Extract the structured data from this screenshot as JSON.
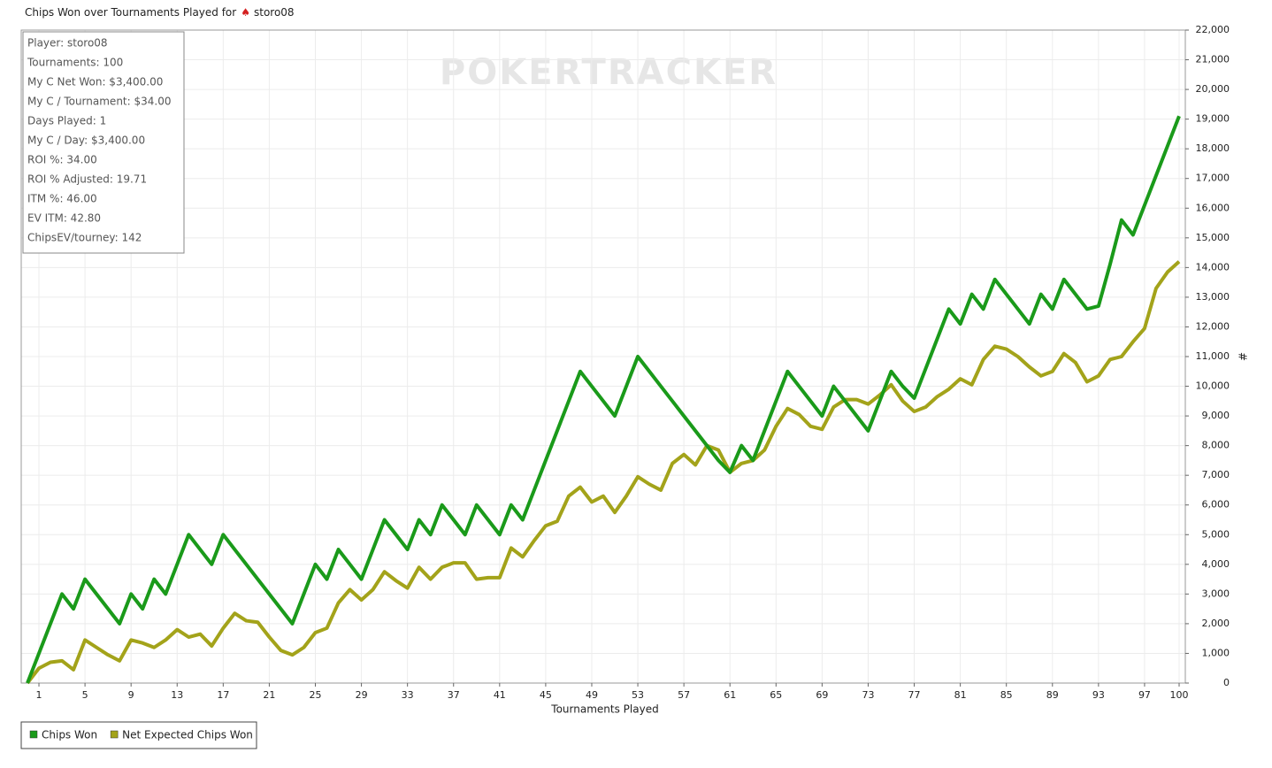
{
  "chart_data": {
    "type": "line",
    "title": "Chips Won over Tournaments Played for",
    "player": "storo08",
    "watermark": "POKERTRACKER",
    "xlabel": "Tournaments Played",
    "ylabel": "#",
    "stats": [
      "Player: storo08",
      "Tournaments: 100",
      "My C Net Won: $3,400.00",
      "My C / Tournament: $34.00",
      "Days Played: 1",
      "My C / Day: $3,400.00",
      "ROI %: 34.00",
      "ROI % Adjusted: 19.71",
      "ITM %: 46.00",
      "EV ITM: 42.80",
      "ChipsEV/tourney: 142"
    ],
    "x": [
      0,
      1,
      2,
      3,
      4,
      5,
      6,
      7,
      8,
      9,
      10,
      11,
      12,
      13,
      14,
      15,
      16,
      17,
      18,
      19,
      20,
      21,
      22,
      23,
      24,
      25,
      26,
      27,
      28,
      29,
      30,
      31,
      32,
      33,
      34,
      35,
      36,
      37,
      38,
      39,
      40,
      41,
      42,
      43,
      44,
      45,
      46,
      47,
      48,
      49,
      50,
      51,
      52,
      53,
      54,
      55,
      56,
      57,
      58,
      59,
      60,
      61,
      62,
      63,
      64,
      65,
      66,
      67,
      68,
      69,
      70,
      71,
      72,
      73,
      74,
      75,
      76,
      77,
      78,
      79,
      80,
      81,
      82,
      83,
      84,
      85,
      86,
      87,
      88,
      89,
      90,
      91,
      92,
      93,
      94,
      95,
      96,
      97,
      98,
      99,
      100
    ],
    "series": [
      {
        "name": "Chips Won",
        "color": "#1a9a1a",
        "values": [
          0,
          1000,
          2000,
          3000,
          2500,
          3500,
          3000,
          2500,
          2000,
          3000,
          2500,
          3500,
          3000,
          4000,
          5000,
          4500,
          4000,
          5000,
          4500,
          4000,
          3500,
          3000,
          2500,
          2000,
          3000,
          4000,
          3500,
          4500,
          4000,
          3500,
          4500,
          5500,
          5000,
          4500,
          5500,
          5000,
          6000,
          5500,
          5000,
          6000,
          5500,
          5000,
          6000,
          5500,
          6500,
          7500,
          8500,
          9500,
          10500,
          10000,
          9500,
          9000,
          10000,
          11000,
          10500,
          10000,
          9500,
          9000,
          8500,
          8000,
          7500,
          7100,
          8000,
          7500,
          8500,
          9500,
          10500,
          10000,
          9500,
          9000,
          10000,
          9500,
          9000,
          8500,
          9500,
          10500,
          10000,
          9600,
          10600,
          11600,
          12600,
          12100,
          13100,
          12600,
          13600,
          13100,
          12600,
          12100,
          13100,
          12600,
          13600,
          13100,
          12600,
          12700,
          14100,
          15600,
          15100,
          16100,
          17100,
          18100,
          19100
        ]
      },
      {
        "name": "Net Expected Chips Won",
        "color": "#a3a31a",
        "values": [
          0,
          500,
          700,
          750,
          450,
          1450,
          1200,
          950,
          750,
          1450,
          1350,
          1200,
          1450,
          1800,
          1550,
          1650,
          1250,
          1850,
          2350,
          2100,
          2050,
          1550,
          1100,
          950,
          1200,
          1700,
          1850,
          2700,
          3150,
          2800,
          3150,
          3750,
          3450,
          3200,
          3900,
          3500,
          3900,
          4050,
          4050,
          3500,
          3550,
          3550,
          4550,
          4250,
          4800,
          5300,
          5450,
          6300,
          6600,
          6100,
          6300,
          5750,
          6300,
          6950,
          6700,
          6500,
          7400,
          7700,
          7350,
          8000,
          7850,
          7100,
          7400,
          7500,
          7850,
          8650,
          9250,
          9050,
          8650,
          8550,
          9300,
          9550,
          9550,
          9400,
          9700,
          10050,
          9500,
          9150,
          9300,
          9650,
          9900,
          10250,
          10050,
          10900,
          11350,
          11250,
          11000,
          10650,
          10350,
          10500,
          11100,
          10800,
          10150,
          10350,
          10900,
          11000,
          11500,
          11950,
          13300,
          13850,
          14200
        ]
      }
    ],
    "xlim": [
      0,
      100
    ],
    "xticks": [
      1,
      5,
      9,
      13,
      17,
      21,
      25,
      29,
      33,
      37,
      41,
      45,
      49,
      53,
      57,
      61,
      65,
      69,
      73,
      77,
      81,
      85,
      89,
      93,
      97,
      100
    ],
    "ylim": [
      0,
      22000
    ],
    "yticks": [
      0,
      {
        "value": 1000,
        "label": "1,000"
      },
      {
        "value": 2000,
        "label": "2,000"
      },
      {
        "value": 3000,
        "label": "3,000"
      },
      {
        "value": 4000,
        "label": "4,000"
      },
      {
        "value": 5000,
        "label": "5,000"
      },
      {
        "value": 6000,
        "label": "6,000"
      },
      {
        "value": 7000,
        "label": "7,000"
      },
      {
        "value": 8000,
        "label": "8,000"
      },
      {
        "value": 9000,
        "label": "9,000"
      },
      {
        "value": 10000,
        "label": "10,000"
      },
      {
        "value": 11000,
        "label": "11,000"
      },
      {
        "value": 12000,
        "label": "12,000"
      },
      {
        "value": 13000,
        "label": "13,000"
      },
      {
        "value": 14000,
        "label": "14,000"
      },
      {
        "value": 15000,
        "label": "15,000"
      },
      {
        "value": 16000,
        "label": "16,000"
      },
      {
        "value": 17000,
        "label": "17,000"
      },
      {
        "value": 18000,
        "label": "18,000"
      },
      {
        "value": 19000,
        "label": "19,000"
      },
      {
        "value": 20000,
        "label": "20,000"
      },
      {
        "value": 21000,
        "label": "21,000"
      },
      {
        "value": 22000,
        "label": "22,000"
      }
    ],
    "grid": true
  }
}
